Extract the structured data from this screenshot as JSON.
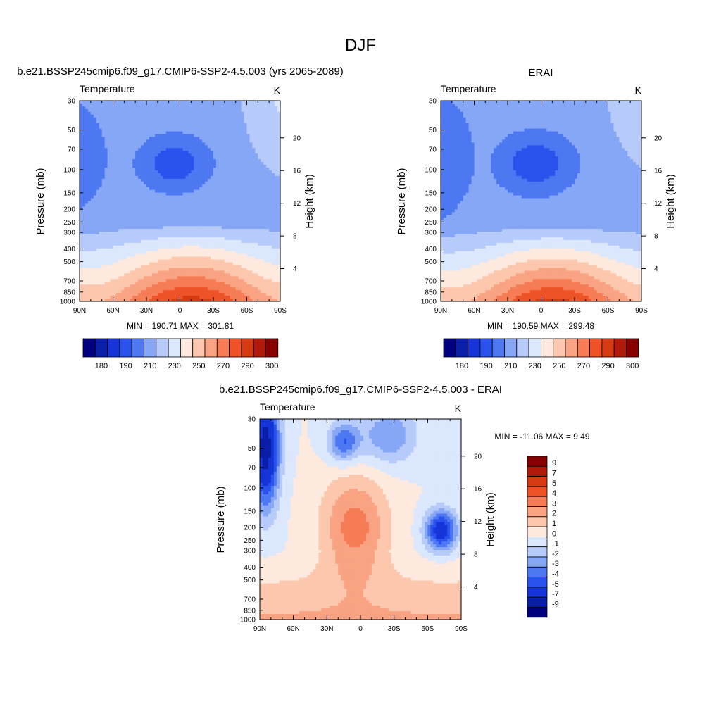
{
  "figure": {
    "title": "DJF"
  },
  "chart_data": [
    {
      "type": "heatmap",
      "panel": "model",
      "header": "b.e21.BSSP245cmip6.f09_g17.CMIP6-SSP2-4.5.003 (yrs 2065-2089)",
      "title": "Temperature",
      "units": "K",
      "ylabel": "Pressure (mb)",
      "ylabel_right": "Height (km)",
      "x_ticks": [
        "90N",
        "60N",
        "30N",
        "0",
        "30S",
        "60S",
        "90S"
      ],
      "y_ticks": [
        "30",
        "50",
        "70",
        "100",
        "150",
        "200",
        "250",
        "300",
        "400",
        "500",
        "700",
        "850",
        "1000"
      ],
      "y_right_ticks": [
        "20",
        "16",
        "12",
        "8",
        "4"
      ],
      "stats": "MIN = 190.71  MAX = 301.81",
      "min": 190.71,
      "max": 301.81,
      "colorbar_ticks": [
        "180",
        "190",
        "210",
        "230",
        "250",
        "270",
        "290",
        "300"
      ]
    },
    {
      "type": "heatmap",
      "panel": "obs",
      "header": "ERAI",
      "title": "Temperature",
      "units": "K",
      "ylabel": "Pressure (mb)",
      "ylabel_right": "Height (km)",
      "x_ticks": [
        "90N",
        "60N",
        "30N",
        "0",
        "30S",
        "60S",
        "90S"
      ],
      "y_ticks": [
        "30",
        "50",
        "70",
        "100",
        "150",
        "200",
        "250",
        "300",
        "400",
        "500",
        "700",
        "850",
        "1000"
      ],
      "y_right_ticks": [
        "20",
        "16",
        "12",
        "8",
        "4"
      ],
      "stats": "MIN = 190.59  MAX = 299.48",
      "min": 190.59,
      "max": 299.48,
      "colorbar_ticks": [
        "180",
        "190",
        "210",
        "230",
        "250",
        "270",
        "290",
        "300"
      ]
    },
    {
      "type": "heatmap",
      "panel": "difference",
      "header": "b.e21.BSSP245cmip6.f09_g17.CMIP6-SSP2-4.5.003 - ERAI",
      "title": "Temperature",
      "units": "K",
      "ylabel": "Pressure (mb)",
      "ylabel_right": "Height (km)",
      "x_ticks": [
        "90N",
        "60N",
        "30N",
        "0",
        "30S",
        "60S",
        "90S"
      ],
      "y_ticks": [
        "30",
        "50",
        "70",
        "100",
        "150",
        "200",
        "250",
        "300",
        "400",
        "500",
        "700",
        "850",
        "1000"
      ],
      "y_right_ticks": [
        "20",
        "16",
        "12",
        "8",
        "4"
      ],
      "stats": "MIN = -11.06  MAX =   9.49",
      "min": -11.06,
      "max": 9.49,
      "colorbar_ticks": [
        "9",
        "7",
        "5",
        "4",
        "3",
        "2",
        "1",
        "0",
        "-1",
        "-2",
        "-3",
        "-4",
        "-5",
        "-7",
        "-9"
      ]
    }
  ],
  "palette": [
    "#00007f",
    "#0a1fa8",
    "#1535d8",
    "#2a52ec",
    "#4d78f2",
    "#86a6f6",
    "#b6cbfa",
    "#dbe7fc",
    "#fde9dd",
    "#fcc7ad",
    "#f9a383",
    "#f67c56",
    "#ee5328",
    "#d53a12",
    "#b11a09",
    "#860000"
  ]
}
